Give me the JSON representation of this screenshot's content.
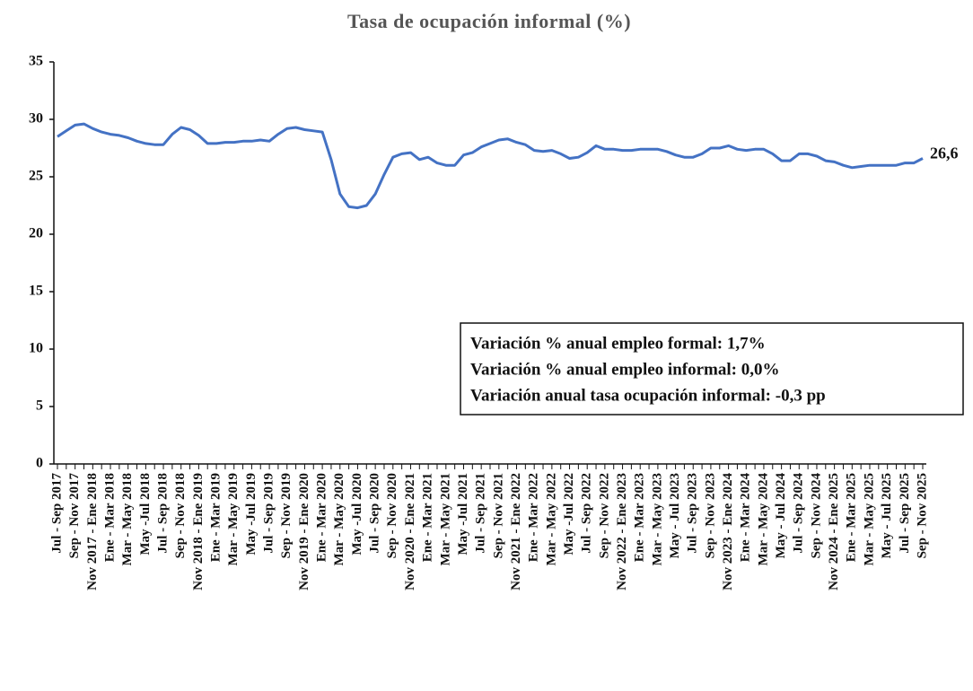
{
  "chart_data": {
    "type": "line",
    "title": "Tasa de ocupación informal (%)",
    "categories": [
      "Jul - Sep 2017",
      null,
      "Sep - Nov 2017",
      null,
      "Nov 2017 - Ene 2018",
      null,
      "Ene - Mar 2018",
      null,
      "Mar - May 2018",
      null,
      "May -Jul 2018",
      null,
      "Jul - Sep 2018",
      null,
      "Sep - Nov 2018",
      null,
      "Nov 2018 - Ene 2019",
      null,
      "Ene - Mar 2019",
      null,
      "Mar - May 2019",
      null,
      "May -Jul 2019",
      null,
      "Jul - Sep 2019",
      null,
      "Sep - Nov 2019",
      null,
      "Nov 2019 - Ene 2020",
      null,
      "Ene - Mar 2020",
      null,
      "Mar - May 2020",
      null,
      "May -Jul 2020",
      null,
      "Jul - Sep 2020",
      null,
      "Sep - Nov 2020",
      null,
      "Nov 2020 - Ene 2021",
      null,
      "Ene - Mar 2021",
      null,
      "Mar - May 2021",
      null,
      "May -Jul 2021",
      null,
      "Jul - Sep 2021",
      null,
      "Sep - Nov 2021",
      null,
      "Nov 2021 - Ene 2022",
      null,
      "Ene - Mar 2022",
      null,
      "Mar - May 2022",
      null,
      "May -Jul 2022",
      null,
      "Jul - Sep 2022",
      null,
      "Sep - Nov 2022",
      null,
      "Nov 2022 - Ene 2023",
      null,
      "Ene - Mar 2023",
      null,
      "Mar - May 2023",
      null,
      "May - Jul 2023",
      null,
      "Jul - Sep 2023",
      null,
      "Sep - Nov 2023",
      null,
      "Nov 2023 - Ene 2024",
      null,
      "Ene - Mar 2024",
      null,
      "Mar - May 2024",
      null,
      "May - Jul 2024",
      null,
      "Jul - Sep 2024",
      null,
      "Sep - Nov 2024",
      null,
      "Nov 2024 - Ene 2025",
      null,
      "Ene - Mar 2025",
      null,
      "Mar - May 2025",
      null,
      "May - Jul 2025",
      null,
      "Jul - Sep 2025",
      null,
      "Sep - Nov 2025"
    ],
    "series": [
      {
        "color": "#4472c4",
        "values": [
          28.5,
          29.0,
          29.5,
          29.6,
          29.2,
          28.9,
          28.7,
          28.6,
          28.4,
          28.1,
          27.9,
          27.8,
          27.8,
          28.7,
          29.3,
          29.1,
          28.6,
          27.9,
          27.9,
          28.0,
          28.0,
          28.1,
          28.1,
          28.2,
          28.1,
          28.7,
          29.2,
          29.3,
          29.1,
          29.0,
          28.9,
          26.5,
          23.5,
          22.4,
          22.3,
          22.5,
          23.5,
          25.2,
          26.7,
          27.0,
          27.1,
          26.5,
          26.7,
          26.2,
          26.0,
          26.0,
          26.9,
          27.1,
          27.6,
          27.9,
          28.2,
          28.3,
          28.0,
          27.8,
          27.3,
          27.2,
          27.3,
          27.0,
          26.6,
          26.7,
          27.1,
          27.7,
          27.4,
          27.4,
          27.3,
          27.3,
          27.4,
          27.4,
          27.4,
          27.2,
          26.9,
          26.7,
          26.7,
          27.0,
          27.5,
          27.5,
          27.7,
          27.4,
          27.3,
          27.4,
          27.4,
          27.0,
          26.4,
          26.4,
          27.0,
          27.0,
          26.8,
          26.4,
          26.3,
          26.0,
          25.8,
          25.9,
          26.0,
          26.0,
          26.0,
          26.0,
          26.2,
          26.2,
          26.6
        ],
        "value_labels": [
          null,
          null,
          null,
          null,
          null,
          null,
          null,
          null,
          null,
          null,
          null,
          null,
          null,
          null,
          null,
          null,
          null,
          null,
          null,
          null,
          null,
          null,
          null,
          null,
          null,
          null,
          null,
          null,
          null,
          null,
          null,
          null,
          null,
          null,
          null,
          null,
          null,
          null,
          null,
          null,
          null,
          null,
          null,
          null,
          null,
          null,
          null,
          null,
          null,
          null,
          null,
          null,
          null,
          null,
          null,
          null,
          null,
          null,
          null,
          null,
          null,
          null,
          null,
          null,
          null,
          null,
          null,
          null,
          null,
          null,
          null,
          null,
          null,
          null,
          null,
          null,
          null,
          null,
          null,
          null,
          null,
          null,
          null,
          null,
          null,
          null,
          null,
          null,
          null,
          null,
          null,
          null,
          null,
          null,
          null,
          null,
          null,
          null,
          "26,6"
        ]
      }
    ],
    "ylim": [
      0,
      35
    ],
    "yticks": [
      0,
      5,
      10,
      15,
      20,
      25,
      30,
      35
    ],
    "grid": false,
    "annotations": [
      "Variación % anual empleo formal: 1,7%",
      "Variación % anual empleo informal: 0,0%",
      "Variación anual tasa ocupación informal: -0,3 pp"
    ]
  }
}
